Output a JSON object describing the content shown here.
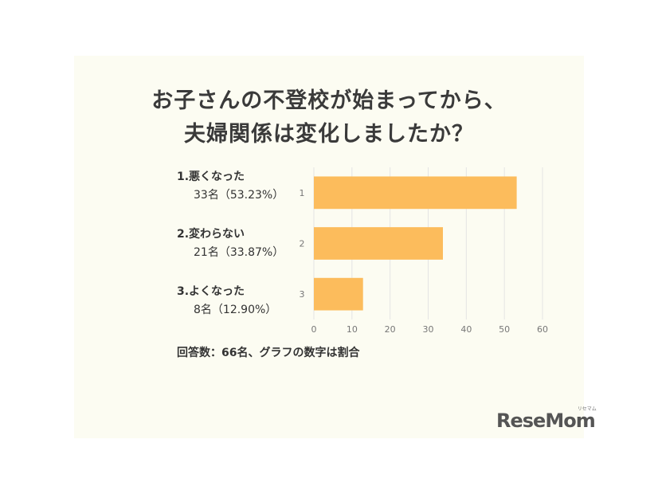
{
  "title": {
    "line1": "お子さんの不登校が始まってから、",
    "line2": "夫婦関係は変化しましたか？"
  },
  "categories": [
    {
      "label": "1.悪くなった",
      "detail": "33名（53.23%）"
    },
    {
      "label": "2.変わらない",
      "detail": "21名（33.87%）"
    },
    {
      "label": "3.よくなった",
      "detail": "8名（12.90%）"
    }
  ],
  "note": "回答数：66名、グラフの数字は割合",
  "logo": {
    "text": "ReseMom",
    "ruby": "リセマム"
  },
  "chart_data": {
    "type": "bar",
    "orientation": "horizontal",
    "title": "お子さんの不登校が始まってから、夫婦関係は変化しましたか？",
    "categories": [
      "1",
      "2",
      "3"
    ],
    "values": [
      53.23,
      33.87,
      12.9
    ],
    "xlim": [
      0,
      60
    ],
    "xticks": [
      0,
      10,
      20,
      30,
      40,
      50,
      60
    ],
    "grid": true,
    "bar_color": "#fcbc5c",
    "grid_color": "#e4e4e4",
    "tick_color": "#777777"
  }
}
